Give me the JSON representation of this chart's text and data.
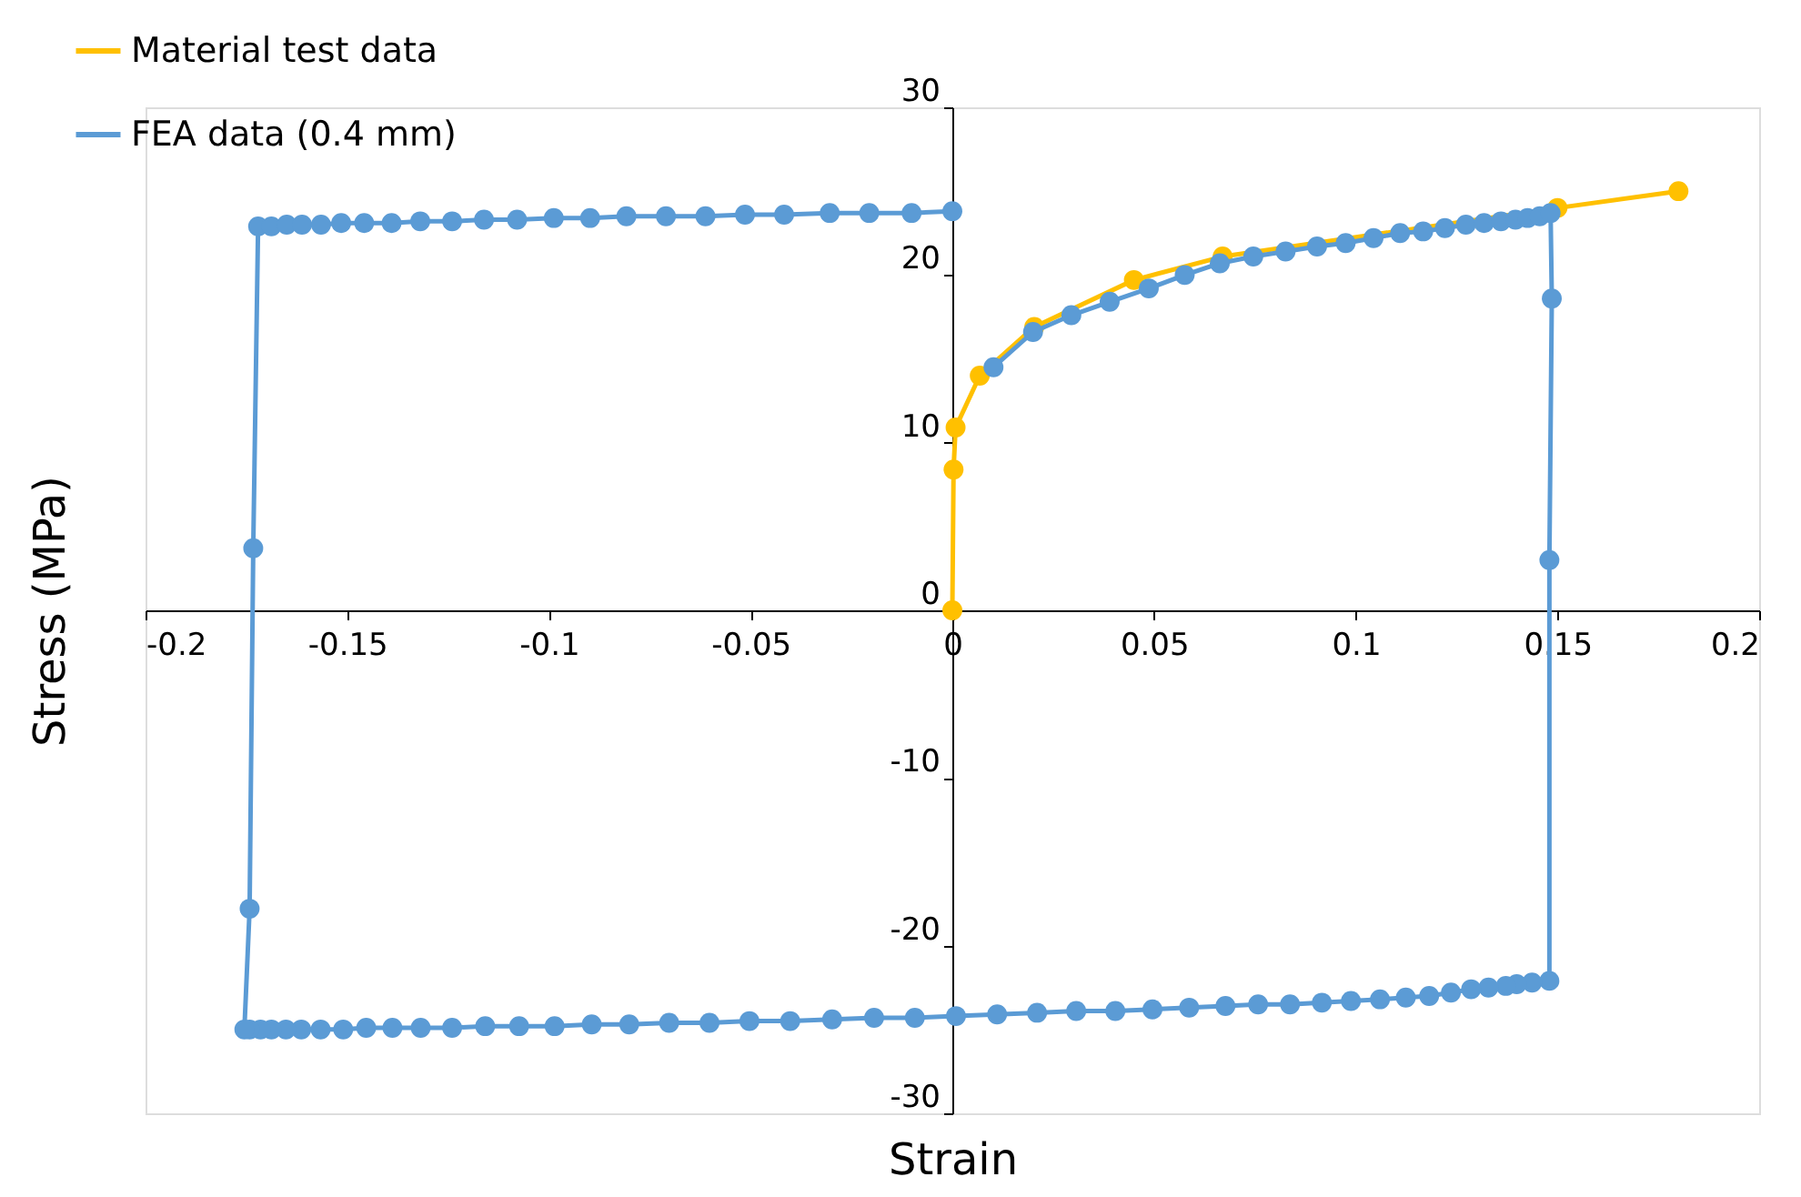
{
  "chart_data": {
    "type": "line",
    "xlabel": "Strain",
    "ylabel": "Stress (MPa)",
    "xlim": [
      -0.2,
      0.2
    ],
    "ylim": [
      -30,
      30
    ],
    "xticks": [
      -0.2,
      -0.15,
      -0.1,
      -0.05,
      0,
      0.05,
      0.1,
      0.15,
      0.2
    ],
    "yticks": [
      -30,
      -20,
      -10,
      0,
      10,
      20,
      30
    ],
    "grid": false,
    "legend": "top left",
    "marker": "circle",
    "line_style": "solid",
    "series": [
      {
        "name": "Material test data",
        "color": "#ffc000",
        "x": [
          0,
          0.0003,
          0.0008,
          0.0068,
          0.0203,
          0.045,
          0.067,
          0.15,
          0.18
        ],
        "values": [
          0,
          8.4,
          10.9,
          14.0,
          16.9,
          19.7,
          21.1,
          24.0,
          25.0
        ]
      },
      {
        "name": "FEA data (0.4 mm)",
        "color": "#5b9bd5",
        "x": [
          0.0102,
          0.02,
          0.0295,
          0.039,
          0.0487,
          0.0576,
          0.0663,
          0.0746,
          0.0826,
          0.0904,
          0.0975,
          0.1044,
          0.111,
          0.1167,
          0.1221,
          0.1273,
          0.1318,
          0.136,
          0.1396,
          0.1426,
          0.1456,
          0.1483,
          0.1486,
          0.148,
          0.148,
          0.1437,
          0.1399,
          0.1372,
          0.1329,
          0.1286,
          0.1236,
          0.1182,
          0.1124,
          0.106,
          0.0988,
          0.0916,
          0.0837,
          0.0758,
          0.0677,
          0.0587,
          0.0496,
          0.0404,
          0.0307,
          0.021,
          0.0111,
          0.0009,
          -0.0093,
          -0.0194,
          -0.0298,
          -0.0402,
          -0.0503,
          -0.0602,
          -0.0702,
          -0.0801,
          -0.0894,
          -0.0986,
          -0.1074,
          -0.1158,
          -0.124,
          -0.1318,
          -0.1388,
          -0.1453,
          -0.151,
          -0.1566,
          -0.1614,
          -0.1652,
          -0.1688,
          -0.1715,
          -0.1742,
          -0.1755,
          -0.1742,
          -0.1733,
          -0.1721,
          -0.1688,
          -0.165,
          -0.1612,
          -0.1565,
          -0.1515,
          -0.1458,
          -0.139,
          -0.1319,
          -0.124,
          -0.1161,
          -0.1079,
          -0.0988,
          -0.0898,
          -0.0808,
          -0.071,
          -0.0612,
          -0.0514,
          -0.0417,
          -0.0304,
          -0.0206,
          -0.0101,
          0
        ],
        "values": [
          14.5,
          16.6,
          17.6,
          18.4,
          19.2,
          20.0,
          20.7,
          21.1,
          21.4,
          21.7,
          21.9,
          22.2,
          22.5,
          22.6,
          22.8,
          23.0,
          23.1,
          23.2,
          23.3,
          23.4,
          23.5,
          23.7,
          18.6,
          3.0,
          -22.1,
          -22.2,
          -22.3,
          -22.4,
          -22.5,
          -22.6,
          -22.8,
          -23.0,
          -23.1,
          -23.2,
          -23.3,
          -23.4,
          -23.5,
          -23.5,
          -23.6,
          -23.7,
          -23.8,
          -23.9,
          -23.9,
          -24.0,
          -24.1,
          -24.2,
          -24.3,
          -24.3,
          -24.4,
          -24.5,
          -24.5,
          -24.6,
          -24.6,
          -24.7,
          -24.7,
          -24.8,
          -24.8,
          -24.8,
          -24.9,
          -24.9,
          -24.9,
          -24.9,
          -25.0,
          -25.0,
          -25.0,
          -25.0,
          -25.0,
          -25.0,
          -25.0,
          -25.0,
          -17.8,
          3.7,
          22.9,
          22.9,
          23.0,
          23.0,
          23.0,
          23.1,
          23.1,
          23.1,
          23.2,
          23.2,
          23.3,
          23.3,
          23.4,
          23.4,
          23.5,
          23.5,
          23.5,
          23.6,
          23.6,
          23.7,
          23.7,
          23.7,
          23.8
        ]
      }
    ]
  }
}
